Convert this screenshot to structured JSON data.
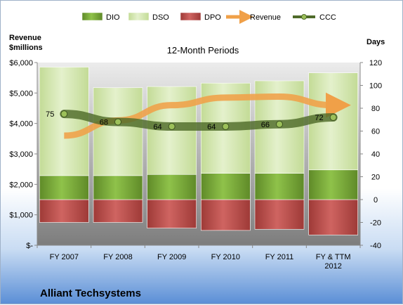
{
  "chart_data": {
    "type": "bar",
    "title": "12-Month Periods",
    "company": "Alliant Techsystems",
    "left_axis": {
      "title_line1": "Revenue",
      "title_line2": "$millions",
      "ylim": [
        0,
        6000
      ],
      "tick_values": [
        0,
        1000,
        2000,
        3000,
        4000,
        5000,
        6000
      ],
      "tick_labels": [
        "$-",
        "$1,000",
        "$2,000",
        "$3,000",
        "$4,000",
        "$5,000",
        "$6,000"
      ]
    },
    "right_axis": {
      "title": "Days",
      "ylim": [
        -40,
        120
      ],
      "tick_values": [
        -40,
        -20,
        0,
        20,
        40,
        60,
        80,
        100,
        120
      ],
      "tick_labels": [
        "-40",
        "-20",
        "0",
        "20",
        "40",
        "60",
        "80",
        "100",
        "120"
      ]
    },
    "categories": [
      [
        "FY 2007"
      ],
      [
        "FY 2008"
      ],
      [
        "FY 2009"
      ],
      [
        "FY 2010"
      ],
      [
        "FY 2011"
      ],
      [
        "FY & TTM",
        "2012"
      ]
    ],
    "legend": [
      {
        "name": "DIO",
        "color": "#77a33a",
        "kind": "box"
      },
      {
        "name": "DSO",
        "color": "#d6e9b3",
        "kind": "box"
      },
      {
        "name": "DPO",
        "color": "#c0504d",
        "kind": "box"
      },
      {
        "name": "Revenue",
        "color": "#f0a048",
        "kind": "arrow"
      },
      {
        "name": "CCC",
        "color": "#4f6b2a",
        "kind": "line"
      }
    ],
    "series": [
      {
        "name": "DIO",
        "color": "#77a33a",
        "values": [
          21,
          21,
          22,
          23,
          23,
          26
        ]
      },
      {
        "name": "DSO",
        "color": "#d6e9b3",
        "values": [
          95,
          77,
          77,
          79,
          81,
          85
        ]
      },
      {
        "name": "DPO",
        "color": "#c0504d",
        "values": [
          -20,
          -20,
          -25,
          -27,
          -26,
          -31
        ]
      },
      {
        "name": "CCC",
        "color": "#4f6b2a",
        "values": [
          75,
          68,
          64,
          64,
          66,
          72
        ]
      },
      {
        "name": "Revenue",
        "color": "#f0a048",
        "values": [
          3600,
          4100,
          4600,
          4850,
          4880,
          4600
        ]
      }
    ],
    "ccc_labels": [
      "75",
      "68",
      "64",
      "64",
      "66",
      "72"
    ],
    "colors": {
      "plot_top": "#ececec",
      "plot_bottom": "#7d7d7d",
      "bar_edge": "#ffffff"
    }
  }
}
